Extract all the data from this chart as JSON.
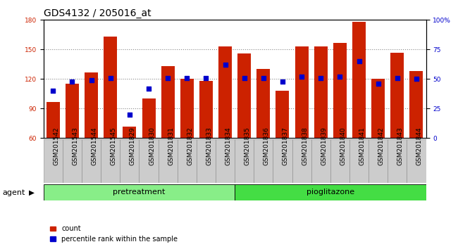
{
  "title": "GDS4132 / 205016_at",
  "samples": [
    "GSM201542",
    "GSM201543",
    "GSM201544",
    "GSM201545",
    "GSM201829",
    "GSM201830",
    "GSM201831",
    "GSM201832",
    "GSM201833",
    "GSM201834",
    "GSM201835",
    "GSM201836",
    "GSM201837",
    "GSM201838",
    "GSM201839",
    "GSM201840",
    "GSM201841",
    "GSM201842",
    "GSM201843",
    "GSM201844"
  ],
  "counts": [
    97,
    115,
    127,
    163,
    72,
    100,
    133,
    120,
    118,
    153,
    146,
    130,
    108,
    153,
    153,
    157,
    178,
    120,
    147,
    128
  ],
  "percentiles": [
    40,
    48,
    49,
    51,
    20,
    42,
    51,
    51,
    51,
    62,
    51,
    51,
    48,
    52,
    51,
    52,
    65,
    46,
    51,
    50
  ],
  "pretreatment_count": 10,
  "pioglitazone_count": 10,
  "ylim_left": [
    60,
    180
  ],
  "ylim_right": [
    0,
    100
  ],
  "yticks_left": [
    60,
    90,
    120,
    150,
    180
  ],
  "yticks_right": [
    0,
    25,
    50,
    75,
    100
  ],
  "bar_color": "#cc2200",
  "dot_color": "#0000cc",
  "pretreatment_color": "#88ee88",
  "pioglitazone_color": "#44dd44",
  "xtick_bg": "#cccccc",
  "agent_label": "agent",
  "pretreatment_label": "pretreatment",
  "pioglitazone_label": "pioglitazone",
  "count_legend": "count",
  "percentile_legend": "percentile rank within the sample",
  "grid_color": "#888888",
  "background_color": "#ffffff",
  "plot_bg": "#ffffff",
  "title_fontsize": 10,
  "tick_fontsize": 6.5,
  "label_fontsize": 8,
  "agent_fontsize": 8
}
